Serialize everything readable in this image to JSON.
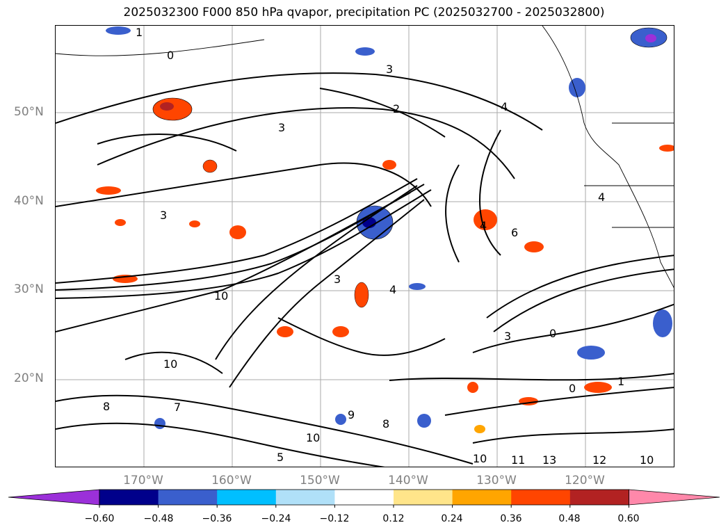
{
  "title": "2025032300 F000 850 hPa qvapor, precipitation PC (2025032700 - 2025032800)",
  "lat_labels": [
    "50°N",
    "40°N",
    "30°N",
    "20°N"
  ],
  "lon_labels": [
    "170°W",
    "160°W",
    "150°W",
    "140°W",
    "130°W",
    "120°W"
  ],
  "colorbar": {
    "ticks": [
      "−0.60",
      "−0.48",
      "−0.36",
      "−0.24",
      "−0.12",
      "0.12",
      "0.24",
      "0.36",
      "0.48",
      "0.60"
    ],
    "colors": [
      "#9b30d9",
      "#00008b",
      "#3a5fcd",
      "#00bfff",
      "#b0e0f8",
      "#ffffff",
      "#ffe58a",
      "#ffa500",
      "#ff4500",
      "#b22222",
      "#ff88aa"
    ]
  },
  "contour_labels": [
    "1",
    "0",
    "3",
    "2",
    "4",
    "5",
    "6",
    "7",
    "8",
    "9",
    "10",
    "11",
    "12",
    "13"
  ]
}
